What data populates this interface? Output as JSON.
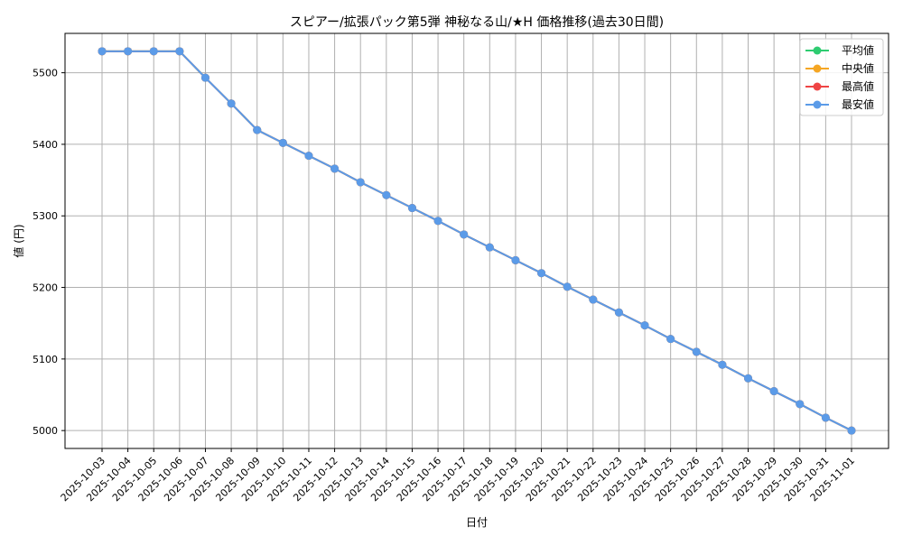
{
  "chart_data": {
    "type": "line",
    "title": "スピアー/拡張パック第5弾 神秘なる山/★H 価格推移(過去30日間)",
    "xlabel": "日付",
    "ylabel": "値 (円)",
    "x": [
      "2025-10-03",
      "2025-10-04",
      "2025-10-05",
      "2025-10-06",
      "2025-10-07",
      "2025-10-08",
      "2025-10-09",
      "2025-10-10",
      "2025-10-11",
      "2025-10-12",
      "2025-10-13",
      "2025-10-14",
      "2025-10-15",
      "2025-10-16",
      "2025-10-17",
      "2025-10-18",
      "2025-10-19",
      "2025-10-20",
      "2025-10-21",
      "2025-10-22",
      "2025-10-23",
      "2025-10-24",
      "2025-10-25",
      "2025-10-26",
      "2025-10-27",
      "2025-10-28",
      "2025-10-29",
      "2025-10-30",
      "2025-10-31",
      "2025-11-01"
    ],
    "ylim": [
      4975,
      5555
    ],
    "yticks": [
      5000,
      5100,
      5200,
      5300,
      5400,
      5500
    ],
    "grid": true,
    "legend_position": "top-right",
    "series": [
      {
        "name": "平均値",
        "color": "#2ecc71",
        "marker": "circle",
        "values": [
          5530,
          5530,
          5530,
          5530,
          5493,
          5457,
          5420,
          5402,
          5384,
          5366,
          5347,
          5329,
          5311,
          5293,
          5274,
          5256,
          5238,
          5220,
          5201,
          5183,
          5165,
          5147,
          5128,
          5110,
          5092,
          5073,
          5055,
          5037,
          5018,
          5000
        ]
      },
      {
        "name": "中央値",
        "color": "#f5a623",
        "marker": "circle",
        "values": [
          5530,
          5530,
          5530,
          5530,
          5493,
          5457,
          5420,
          5402,
          5384,
          5366,
          5347,
          5329,
          5311,
          5293,
          5274,
          5256,
          5238,
          5220,
          5201,
          5183,
          5165,
          5147,
          5128,
          5110,
          5092,
          5073,
          5055,
          5037,
          5018,
          5000
        ]
      },
      {
        "name": "最高値",
        "color": "#ef4444",
        "marker": "circle",
        "values": [
          5530,
          5530,
          5530,
          5530,
          5493,
          5457,
          5420,
          5402,
          5384,
          5366,
          5347,
          5329,
          5311,
          5293,
          5274,
          5256,
          5238,
          5220,
          5201,
          5183,
          5165,
          5147,
          5128,
          5110,
          5092,
          5073,
          5055,
          5037,
          5018,
          5000
        ]
      },
      {
        "name": "最安値",
        "color": "#5b9be8",
        "marker": "circle",
        "values": [
          5530,
          5530,
          5530,
          5530,
          5493,
          5457,
          5420,
          5402,
          5384,
          5366,
          5347,
          5329,
          5311,
          5293,
          5274,
          5256,
          5238,
          5220,
          5201,
          5183,
          5165,
          5147,
          5128,
          5110,
          5092,
          5073,
          5055,
          5037,
          5018,
          5000
        ]
      }
    ]
  }
}
